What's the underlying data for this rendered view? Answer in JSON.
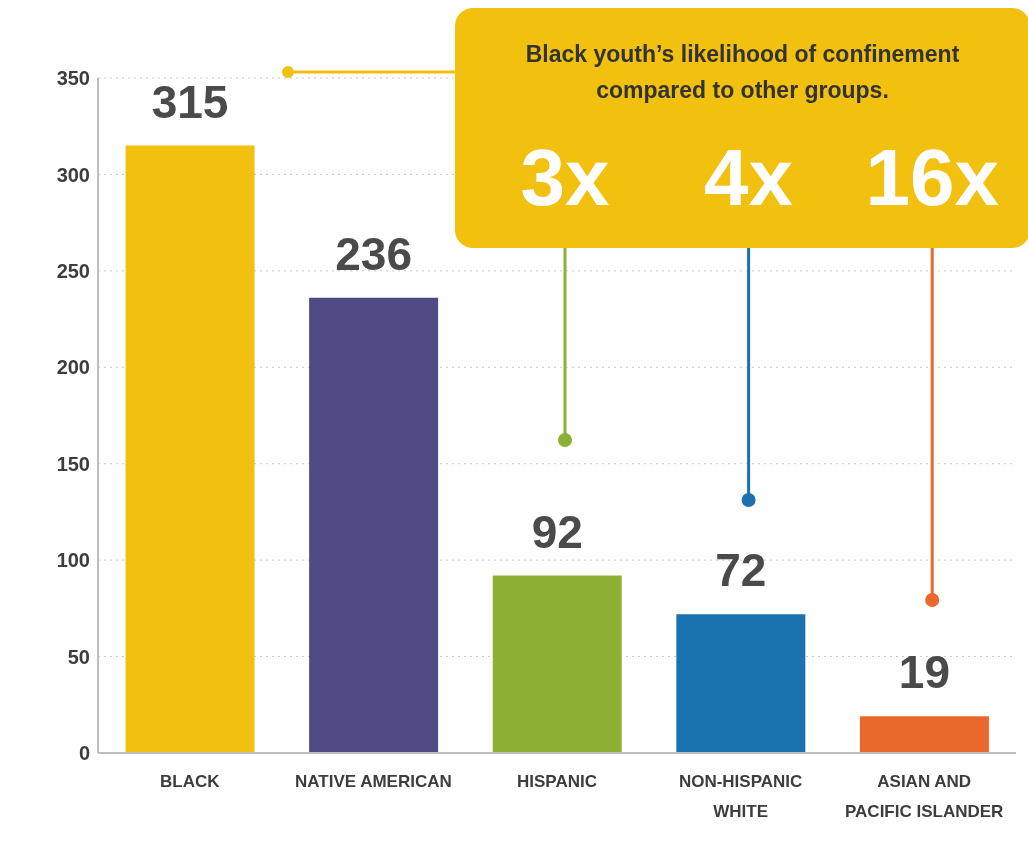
{
  "chart_data": {
    "type": "bar",
    "title": "Black youth’s likelihood of confinement compared to other groups.",
    "categories": [
      "BLACK",
      "NATIVE AMERICAN",
      "HISPANIC",
      "NON-HISPANIC WHITE",
      "ASIAN AND PACIFIC ISLANDER"
    ],
    "values": [
      315,
      236,
      92,
      72,
      19
    ],
    "colors": [
      "#f2c00f",
      "#4e4a82",
      "#8db032",
      "#1b72b0",
      "#e8692b"
    ],
    "ylim": [
      0,
      350
    ],
    "yticks": [
      0,
      50,
      100,
      150,
      200,
      250,
      300,
      350
    ],
    "grid": "y",
    "data_labels": true,
    "annotations": [
      "3x",
      "4x",
      "16x"
    ]
  }
}
